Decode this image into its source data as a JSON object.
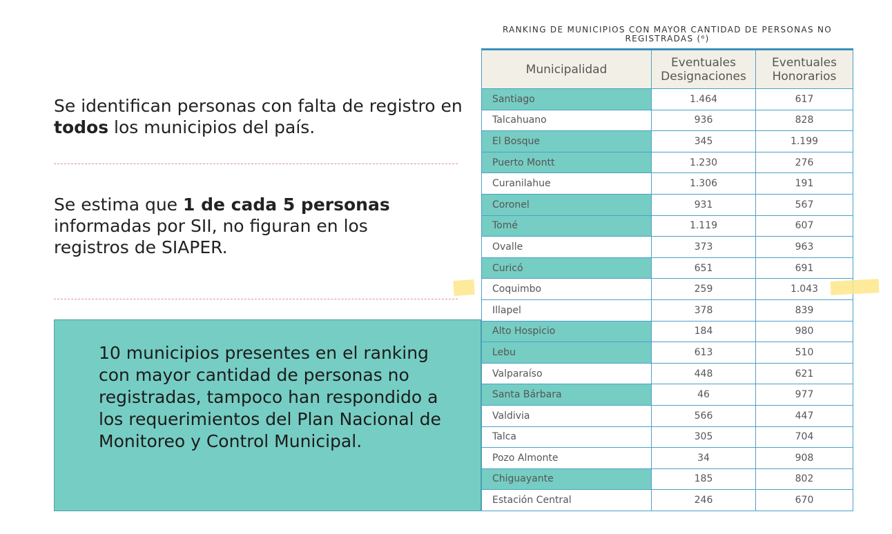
{
  "left": {
    "stat1": {
      "pre": "Se identifican personas con falta de registro en ",
      "bold": "todos",
      "post": " los municipios del país."
    },
    "stat2": {
      "pre": "Se estima que ",
      "bold": "1 de cada 5 personas",
      "post": " informadas por SII, no figuran en los registros de SIAPER."
    },
    "callout": "10 municipios presentes en el ranking con mayor cantidad de personas no registradas, tampoco han respondido a los requerimientos del Plan Nacional de Monitoreo y Control Municipal."
  },
  "table": {
    "title": "RANKING DE MUNICIPIOS CON MAYOR CANTIDAD DE PERSONAS NO REGISTRADAS (⁶)",
    "headers": [
      "Municipalidad",
      "Eventuales Designaciones",
      "Eventuales Honorarios"
    ],
    "highlight_color": "#76cdc3",
    "rows": [
      {
        "name": "Santiago",
        "d": "1.464",
        "h": "617",
        "hl": true
      },
      {
        "name": "Talcahuano",
        "d": "936",
        "h": "828",
        "hl": false
      },
      {
        "name": "El Bosque",
        "d": "345",
        "h": "1.199",
        "hl": true
      },
      {
        "name": "Puerto Montt",
        "d": "1.230",
        "h": "276",
        "hl": true
      },
      {
        "name": "Curanilahue",
        "d": "1.306",
        "h": "191",
        "hl": false
      },
      {
        "name": "Coronel",
        "d": "931",
        "h": "567",
        "hl": true
      },
      {
        "name": "Tomé",
        "d": "1.119",
        "h": "607",
        "hl": true
      },
      {
        "name": "Ovalle",
        "d": "373",
        "h": "963",
        "hl": false
      },
      {
        "name": "Curicó",
        "d": "651",
        "h": "691",
        "hl": true
      },
      {
        "name": "Coquimbo",
        "d": "259",
        "h": "1.043",
        "hl": false
      },
      {
        "name": "Illapel",
        "d": "378",
        "h": "839",
        "hl": false
      },
      {
        "name": "Alto Hospicio",
        "d": "184",
        "h": "980",
        "hl": true
      },
      {
        "name": "Lebu",
        "d": "613",
        "h": "510",
        "hl": true
      },
      {
        "name": "Valparaíso",
        "d": "448",
        "h": "621",
        "hl": false
      },
      {
        "name": "Santa  Bárbara",
        "d": "46",
        "h": "977",
        "hl": true
      },
      {
        "name": "Valdivia",
        "d": "566",
        "h": "447",
        "hl": false
      },
      {
        "name": "Talca",
        "d": "305",
        "h": "704",
        "hl": false
      },
      {
        "name": "Pozo Almonte",
        "d": "34",
        "h": "908",
        "hl": false
      },
      {
        "name": "Chiguayante",
        "d": "185",
        "h": "802",
        "hl": true
      },
      {
        "name": "Estación Central",
        "d": "246",
        "h": "670",
        "hl": false
      }
    ]
  }
}
